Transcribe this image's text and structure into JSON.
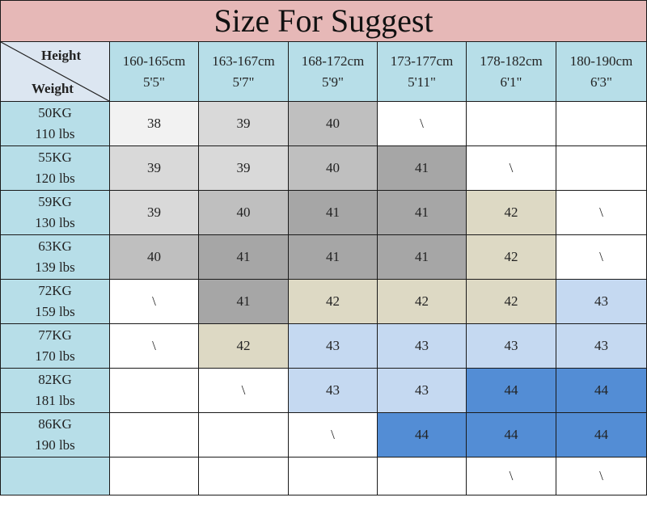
{
  "title": "Size For Suggest",
  "corner": {
    "top_label": "Height",
    "bottom_label": "Weight"
  },
  "colors": {
    "title_bg": "#e6b8b7",
    "header_bg": "#b7dee8",
    "corner_bg": "#dce6f1",
    "w": "#ffffff",
    "g1": "#f2f2f2",
    "g2": "#d9d9d9",
    "g3": "#bfbfbf",
    "g4": "#a6a6a6",
    "beige": "#ddd9c4",
    "lb": "#c5d9f1",
    "blue": "#538dd5"
  },
  "columns": [
    {
      "cm": "160-165cm",
      "ft": "5'5\""
    },
    {
      "cm": "163-167cm",
      "ft": "5'7\""
    },
    {
      "cm": "168-172cm",
      "ft": "5'9\""
    },
    {
      "cm": "173-177cm",
      "ft": "5'11\""
    },
    {
      "cm": "178-182cm",
      "ft": "6'1\""
    },
    {
      "cm": "180-190cm",
      "ft": "6'3\""
    }
  ],
  "rows": [
    {
      "kg": "50KG",
      "lbs": "110 lbs",
      "cells": [
        {
          "v": "38",
          "c": "g1"
        },
        {
          "v": "39",
          "c": "g2"
        },
        {
          "v": "40",
          "c": "g3"
        },
        {
          "v": "\\",
          "c": "w"
        },
        {
          "v": "",
          "c": "w"
        },
        {
          "v": "",
          "c": "w"
        }
      ]
    },
    {
      "kg": "55KG",
      "lbs": "120 lbs",
      "cells": [
        {
          "v": "39",
          "c": "g2"
        },
        {
          "v": "39",
          "c": "g2"
        },
        {
          "v": "40",
          "c": "g3"
        },
        {
          "v": "41",
          "c": "g4"
        },
        {
          "v": "\\",
          "c": "w"
        },
        {
          "v": "",
          "c": "w"
        }
      ]
    },
    {
      "kg": "59KG",
      "lbs": "130 lbs",
      "cells": [
        {
          "v": "39",
          "c": "g2"
        },
        {
          "v": "40",
          "c": "g3"
        },
        {
          "v": "41",
          "c": "g4"
        },
        {
          "v": "41",
          "c": "g4"
        },
        {
          "v": "42",
          "c": "beige"
        },
        {
          "v": "\\",
          "c": "w"
        }
      ]
    },
    {
      "kg": "63KG",
      "lbs": "139 lbs",
      "cells": [
        {
          "v": "40",
          "c": "g3"
        },
        {
          "v": "41",
          "c": "g4"
        },
        {
          "v": "41",
          "c": "g4"
        },
        {
          "v": "41",
          "c": "g4"
        },
        {
          "v": "42",
          "c": "beige"
        },
        {
          "v": "\\",
          "c": "w"
        }
      ]
    },
    {
      "kg": "72KG",
      "lbs": "159 lbs",
      "cells": [
        {
          "v": "\\",
          "c": "w"
        },
        {
          "v": "41",
          "c": "g4"
        },
        {
          "v": "42",
          "c": "beige"
        },
        {
          "v": "42",
          "c": "beige"
        },
        {
          "v": "42",
          "c": "beige"
        },
        {
          "v": "43",
          "c": "lb"
        }
      ]
    },
    {
      "kg": "77KG",
      "lbs": "170 lbs",
      "cells": [
        {
          "v": "\\",
          "c": "w"
        },
        {
          "v": "42",
          "c": "beige"
        },
        {
          "v": "43",
          "c": "lb"
        },
        {
          "v": "43",
          "c": "lb"
        },
        {
          "v": "43",
          "c": "lb"
        },
        {
          "v": "43",
          "c": "lb"
        }
      ]
    },
    {
      "kg": "82KG",
      "lbs": "181 lbs",
      "cells": [
        {
          "v": "",
          "c": "w"
        },
        {
          "v": "\\",
          "c": "w"
        },
        {
          "v": "43",
          "c": "lb"
        },
        {
          "v": "43",
          "c": "lb"
        },
        {
          "v": "44",
          "c": "blue"
        },
        {
          "v": "44",
          "c": "blue"
        }
      ]
    },
    {
      "kg": "86KG",
      "lbs": "190 lbs",
      "cells": [
        {
          "v": "",
          "c": "w"
        },
        {
          "v": "",
          "c": "w"
        },
        {
          "v": "\\",
          "c": "w"
        },
        {
          "v": "44",
          "c": "blue"
        },
        {
          "v": "44",
          "c": "blue"
        },
        {
          "v": "44",
          "c": "blue"
        }
      ]
    },
    {
      "kg": "",
      "lbs": "",
      "cells": [
        {
          "v": "",
          "c": "w"
        },
        {
          "v": "",
          "c": "w"
        },
        {
          "v": "",
          "c": "w"
        },
        {
          "v": "",
          "c": "w"
        },
        {
          "v": "\\",
          "c": "w"
        },
        {
          "v": "\\",
          "c": "w"
        }
      ]
    }
  ]
}
